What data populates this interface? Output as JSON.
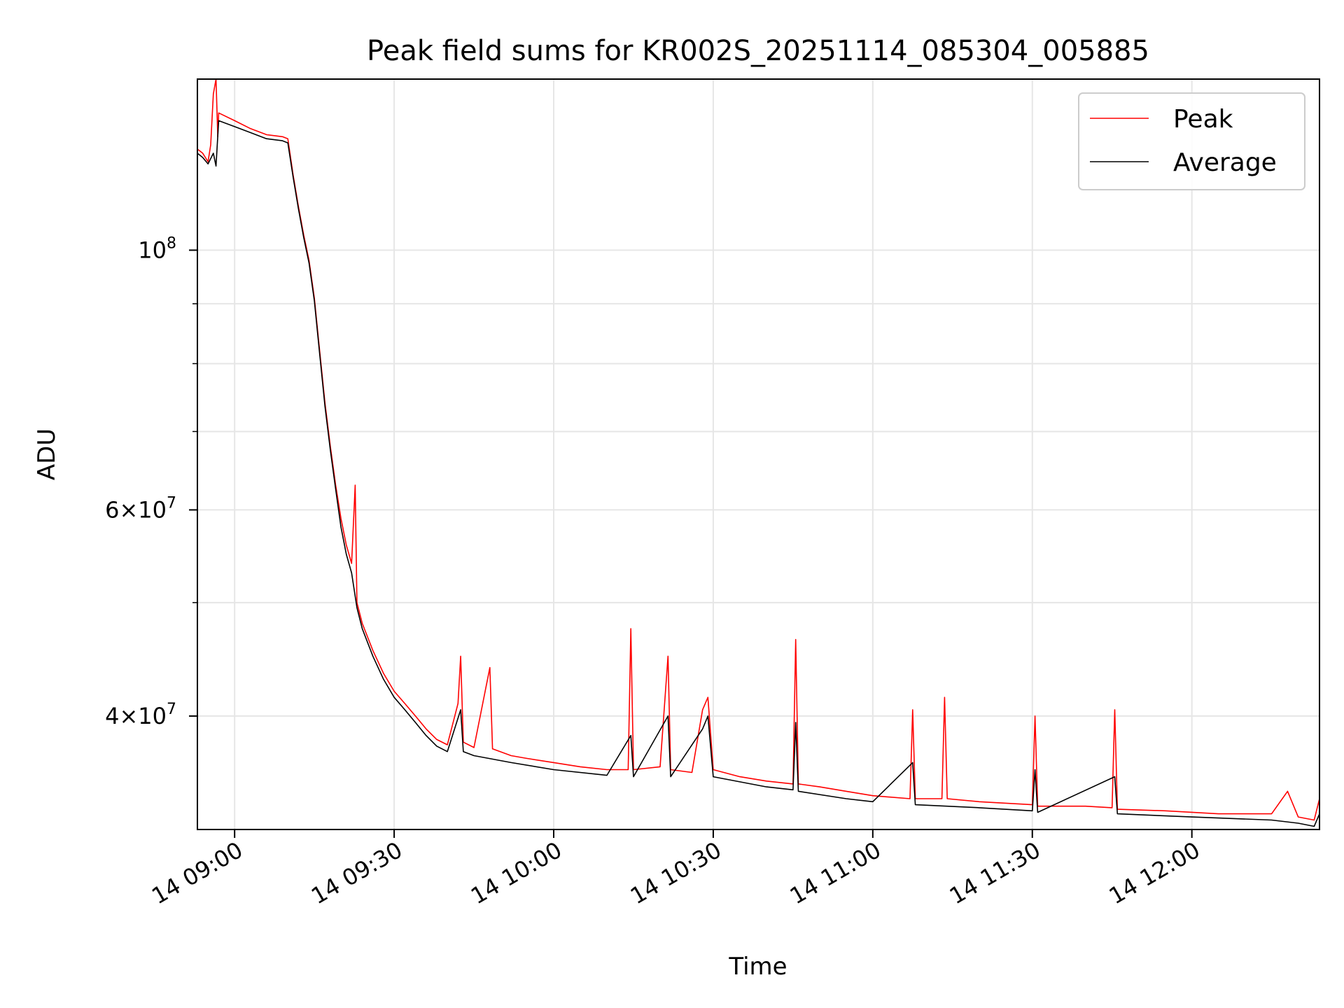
{
  "chart_data": {
    "type": "line",
    "title": "Peak field sums for KR002S_20251114_085304_005885",
    "xlabel": "Time",
    "ylabel": "ADU",
    "yscale": "log",
    "grid": true,
    "legend_position": "top-right",
    "xlim": [
      "2025-11-14 08:53:00",
      "2025-11-14 12:24:00"
    ],
    "ylim": [
      32000000,
      140000000
    ],
    "x_ticks": [
      {
        "value": "2025-11-14 09:00",
        "label": "14 09:00"
      },
      {
        "value": "2025-11-14 09:30",
        "label": "14 09:30"
      },
      {
        "value": "2025-11-14 10:00",
        "label": "14 10:00"
      },
      {
        "value": "2025-11-14 10:30",
        "label": "14 10:30"
      },
      {
        "value": "2025-11-14 11:00",
        "label": "14 11:00"
      },
      {
        "value": "2025-11-14 11:30",
        "label": "14 11:30"
      },
      {
        "value": "2025-11-14 12:00",
        "label": "14 12:00"
      }
    ],
    "y_major_ticks": [
      {
        "value": 40000000,
        "mantissa": "4×10",
        "exp": "7"
      },
      {
        "value": 60000000,
        "mantissa": "6×10",
        "exp": "7"
      },
      {
        "value": 100000000,
        "mantissa": "10",
        "exp": "8"
      }
    ],
    "y_minor_ticks": [
      50000000,
      70000000,
      80000000,
      90000000
    ],
    "series": [
      {
        "name": "Peak",
        "color": "#ff0000",
        "points": [
          [
            "2025-11-14 08:53:00",
            122000000
          ],
          [
            "2025-11-14 08:54:00",
            121000000
          ],
          [
            "2025-11-14 08:55:00",
            119000000
          ],
          [
            "2025-11-14 08:55:30",
            123000000
          ],
          [
            "2025-11-14 08:56:00",
            136000000
          ],
          [
            "2025-11-14 08:56:30",
            140000000
          ],
          [
            "2025-11-14 08:56:50",
            125000000
          ],
          [
            "2025-11-14 08:57:00",
            131000000
          ],
          [
            "2025-11-14 09:00:00",
            129000000
          ],
          [
            "2025-11-14 09:03:00",
            127000000
          ],
          [
            "2025-11-14 09:06:00",
            125500000
          ],
          [
            "2025-11-14 09:09:00",
            125000000
          ],
          [
            "2025-11-14 09:10:00",
            124500000
          ],
          [
            "2025-11-14 09:11:00",
            116000000
          ],
          [
            "2025-11-14 09:12:00",
            109000000
          ],
          [
            "2025-11-14 09:13:00",
            103000000
          ],
          [
            "2025-11-14 09:14:00",
            98000000
          ],
          [
            "2025-11-14 09:15:00",
            91000000
          ],
          [
            "2025-11-14 09:16:00",
            82000000
          ],
          [
            "2025-11-14 09:17:00",
            74000000
          ],
          [
            "2025-11-14 09:18:00",
            68000000
          ],
          [
            "2025-11-14 09:19:00",
            63000000
          ],
          [
            "2025-11-14 09:20:00",
            59000000
          ],
          [
            "2025-11-14 09:21:00",
            56000000
          ],
          [
            "2025-11-14 09:22:00",
            54000000
          ],
          [
            "2025-11-14 09:22:40",
            63000000
          ],
          [
            "2025-11-14 09:23:00",
            50000000
          ],
          [
            "2025-11-14 09:24:00",
            48000000
          ],
          [
            "2025-11-14 09:26:00",
            45500000
          ],
          [
            "2025-11-14 09:28:00",
            43500000
          ],
          [
            "2025-11-14 09:30:00",
            42000000
          ],
          [
            "2025-11-14 09:32:00",
            41000000
          ],
          [
            "2025-11-14 09:34:00",
            40000000
          ],
          [
            "2025-11-14 09:36:00",
            39000000
          ],
          [
            "2025-11-14 09:38:00",
            38200000
          ],
          [
            "2025-11-14 09:40:00",
            37800000
          ],
          [
            "2025-11-14 09:42:00",
            41000000
          ],
          [
            "2025-11-14 09:42:30",
            45000000
          ],
          [
            "2025-11-14 09:43:00",
            38000000
          ],
          [
            "2025-11-14 09:45:00",
            37600000
          ],
          [
            "2025-11-14 09:48:00",
            44000000
          ],
          [
            "2025-11-14 09:48:30",
            37500000
          ],
          [
            "2025-11-14 09:52:00",
            37000000
          ],
          [
            "2025-11-14 09:55:00",
            36800000
          ],
          [
            "2025-11-14 10:00:00",
            36500000
          ],
          [
            "2025-11-14 10:05:00",
            36200000
          ],
          [
            "2025-11-14 10:10:00",
            36000000
          ],
          [
            "2025-11-14 10:14:00",
            36000000
          ],
          [
            "2025-11-14 10:14:30",
            47500000
          ],
          [
            "2025-11-14 10:15:00",
            36000000
          ],
          [
            "2025-11-14 10:20:00",
            36200000
          ],
          [
            "2025-11-14 10:21:30",
            45000000
          ],
          [
            "2025-11-14 10:22:00",
            36000000
          ],
          [
            "2025-11-14 10:26:00",
            35800000
          ],
          [
            "2025-11-14 10:28:00",
            40500000
          ],
          [
            "2025-11-14 10:29:00",
            41500000
          ],
          [
            "2025-11-14 10:30:00",
            36000000
          ],
          [
            "2025-11-14 10:35:00",
            35500000
          ],
          [
            "2025-11-14 10:40:00",
            35200000
          ],
          [
            "2025-11-14 10:45:00",
            35000000
          ],
          [
            "2025-11-14 10:45:30",
            46500000
          ],
          [
            "2025-11-14 10:46:00",
            35000000
          ],
          [
            "2025-11-14 10:50:00",
            34800000
          ],
          [
            "2025-11-14 10:55:00",
            34500000
          ],
          [
            "2025-11-14 11:00:00",
            34200000
          ],
          [
            "2025-11-14 11:07:00",
            34000000
          ],
          [
            "2025-11-14 11:07:30",
            40500000
          ],
          [
            "2025-11-14 11:08:00",
            34000000
          ],
          [
            "2025-11-14 11:13:00",
            34000000
          ],
          [
            "2025-11-14 11:13:30",
            41500000
          ],
          [
            "2025-11-14 11:14:00",
            34000000
          ],
          [
            "2025-11-14 11:20:00",
            33800000
          ],
          [
            "2025-11-14 11:30:00",
            33600000
          ],
          [
            "2025-11-14 11:30:30",
            40000000
          ],
          [
            "2025-11-14 11:31:00",
            33500000
          ],
          [
            "2025-11-14 11:40:00",
            33500000
          ],
          [
            "2025-11-14 11:45:00",
            33400000
          ],
          [
            "2025-11-14 11:45:30",
            40500000
          ],
          [
            "2025-11-14 11:46:00",
            33300000
          ],
          [
            "2025-11-14 11:55:00",
            33200000
          ],
          [
            "2025-11-14 12:05:00",
            33000000
          ],
          [
            "2025-11-14 12:15:00",
            33000000
          ],
          [
            "2025-11-14 12:18:00",
            34500000
          ],
          [
            "2025-11-14 12:20:00",
            32800000
          ],
          [
            "2025-11-14 12:23:00",
            32600000
          ],
          [
            "2025-11-14 12:24:00",
            34000000
          ]
        ]
      },
      {
        "name": "Average",
        "color": "#000000",
        "points": [
          [
            "2025-11-14 08:53:00",
            121000000
          ],
          [
            "2025-11-14 08:54:00",
            120000000
          ],
          [
            "2025-11-14 08:55:00",
            118500000
          ],
          [
            "2025-11-14 08:56:00",
            121000000
          ],
          [
            "2025-11-14 08:56:30",
            118000000
          ],
          [
            "2025-11-14 08:57:00",
            129000000
          ],
          [
            "2025-11-14 09:00:00",
            127500000
          ],
          [
            "2025-11-14 09:03:00",
            126000000
          ],
          [
            "2025-11-14 09:06:00",
            124500000
          ],
          [
            "2025-11-14 09:09:00",
            124000000
          ],
          [
            "2025-11-14 09:10:00",
            123500000
          ],
          [
            "2025-11-14 09:11:00",
            115500000
          ],
          [
            "2025-11-14 09:12:00",
            108500000
          ],
          [
            "2025-11-14 09:13:00",
            102500000
          ],
          [
            "2025-11-14 09:14:00",
            97500000
          ],
          [
            "2025-11-14 09:15:00",
            90500000
          ],
          [
            "2025-11-14 09:16:00",
            81500000
          ],
          [
            "2025-11-14 09:17:00",
            73500000
          ],
          [
            "2025-11-14 09:18:00",
            67500000
          ],
          [
            "2025-11-14 09:19:00",
            62500000
          ],
          [
            "2025-11-14 09:20:00",
            58000000
          ],
          [
            "2025-11-14 09:21:00",
            55000000
          ],
          [
            "2025-11-14 09:22:00",
            53000000
          ],
          [
            "2025-11-14 09:23:00",
            49500000
          ],
          [
            "2025-11-14 09:24:00",
            47500000
          ],
          [
            "2025-11-14 09:26:00",
            45000000
          ],
          [
            "2025-11-14 09:28:00",
            43000000
          ],
          [
            "2025-11-14 09:30:00",
            41500000
          ],
          [
            "2025-11-14 09:32:00",
            40500000
          ],
          [
            "2025-11-14 09:34:00",
            39500000
          ],
          [
            "2025-11-14 09:36:00",
            38500000
          ],
          [
            "2025-11-14 09:38:00",
            37700000
          ],
          [
            "2025-11-14 09:40:00",
            37300000
          ],
          [
            "2025-11-14 09:42:30",
            40500000
          ],
          [
            "2025-11-14 09:43:00",
            37300000
          ],
          [
            "2025-11-14 09:45:00",
            37000000
          ],
          [
            "2025-11-14 09:52:00",
            36500000
          ],
          [
            "2025-11-14 10:00:00",
            36000000
          ],
          [
            "2025-11-14 10:10:00",
            35600000
          ],
          [
            "2025-11-14 10:14:30",
            38500000
          ],
          [
            "2025-11-14 10:15:00",
            35500000
          ],
          [
            "2025-11-14 10:21:30",
            40000000
          ],
          [
            "2025-11-14 10:22:00",
            35500000
          ],
          [
            "2025-11-14 10:28:00",
            39000000
          ],
          [
            "2025-11-14 10:29:00",
            40000000
          ],
          [
            "2025-11-14 10:30:00",
            35500000
          ],
          [
            "2025-11-14 10:40:00",
            34800000
          ],
          [
            "2025-11-14 10:45:00",
            34600000
          ],
          [
            "2025-11-14 10:45:30",
            39500000
          ],
          [
            "2025-11-14 10:46:00",
            34500000
          ],
          [
            "2025-11-14 10:55:00",
            34000000
          ],
          [
            "2025-11-14 11:00:00",
            33800000
          ],
          [
            "2025-11-14 11:07:30",
            36500000
          ],
          [
            "2025-11-14 11:08:00",
            33600000
          ],
          [
            "2025-11-14 11:20:00",
            33400000
          ],
          [
            "2025-11-14 11:30:00",
            33200000
          ],
          [
            "2025-11-14 11:30:30",
            36000000
          ],
          [
            "2025-11-14 11:31:00",
            33100000
          ],
          [
            "2025-11-14 11:45:30",
            35500000
          ],
          [
            "2025-11-14 11:46:00",
            33000000
          ],
          [
            "2025-11-14 12:00:00",
            32800000
          ],
          [
            "2025-11-14 12:15:00",
            32600000
          ],
          [
            "2025-11-14 12:20:00",
            32400000
          ],
          [
            "2025-11-14 12:23:00",
            32200000
          ],
          [
            "2025-11-14 12:24:00",
            33000000
          ]
        ]
      }
    ]
  }
}
